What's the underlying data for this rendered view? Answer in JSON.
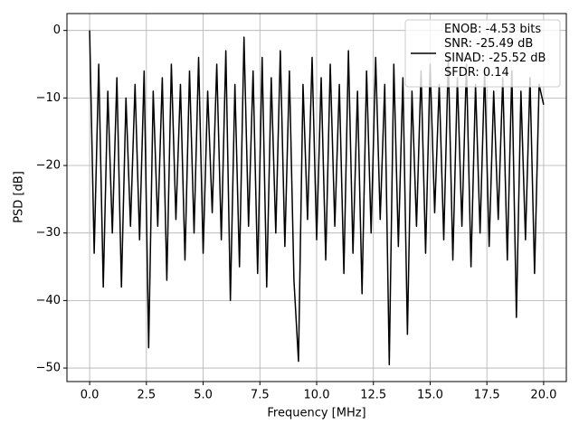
{
  "chart_data": {
    "type": "line",
    "xlabel": "Frequency [MHz]",
    "ylabel": "PSD [dB]",
    "x": [
      0,
      0.2,
      0.4,
      0.6,
      0.8,
      1.0,
      1.2,
      1.4,
      1.6,
      1.8,
      2.0,
      2.2,
      2.4,
      2.6,
      2.8,
      3.0,
      3.2,
      3.4,
      3.6,
      3.8,
      4.0,
      4.2,
      4.4,
      4.6,
      4.8,
      5.0,
      5.2,
      5.4,
      5.6,
      5.8,
      6.0,
      6.2,
      6.4,
      6.6,
      6.8,
      7.0,
      7.2,
      7.4,
      7.6,
      7.8,
      8.0,
      8.2,
      8.4,
      8.6,
      8.8,
      9.0,
      9.2,
      9.4,
      9.6,
      9.8,
      10.0,
      10.2,
      10.4,
      10.6,
      10.8,
      11.0,
      11.2,
      11.4,
      11.6,
      11.8,
      12.0,
      12.2,
      12.4,
      12.6,
      12.8,
      13.0,
      13.2,
      13.4,
      13.6,
      13.8,
      14.0,
      14.2,
      14.4,
      14.6,
      14.8,
      15.0,
      15.2,
      15.4,
      15.6,
      15.8,
      16.0,
      16.2,
      16.4,
      16.6,
      16.8,
      17.0,
      17.2,
      17.4,
      17.6,
      17.8,
      18.0,
      18.2,
      18.4,
      18.6,
      18.8,
      19.0,
      19.2,
      19.4,
      19.6,
      19.8,
      20.0
    ],
    "series": [
      {
        "name": "ENOB: -4.53 bits\nSNR: -25.49 dB\nSINAD: -25.52 dB\nSFDR: 0.14",
        "color": "#000000",
        "values": [
          0,
          -33,
          -5,
          -38,
          -9,
          -30,
          -7,
          -38,
          -10,
          -29,
          -8,
          -31,
          -6,
          -47,
          -9,
          -29,
          -7,
          -37,
          -5,
          -28,
          -8,
          -34,
          -6,
          -30,
          -4,
          -33,
          -9,
          -27,
          -5,
          -31,
          -3,
          -40,
          -8,
          -35,
          -1,
          -29,
          -6,
          -36,
          -4,
          -38,
          -7,
          -30,
          -3,
          -32,
          -6,
          -37,
          -49,
          -8,
          -28,
          -4,
          -31,
          -7,
          -34,
          -5,
          -29,
          -8,
          -36,
          -3,
          -33,
          -9,
          -39,
          -6,
          -30,
          -4,
          -28,
          -8,
          -49.5,
          -5,
          -32,
          -7,
          -45,
          -9,
          -29,
          -6,
          -33,
          -5,
          -27,
          -8,
          -31,
          -4,
          -34,
          -7,
          -29,
          -5,
          -35,
          -8,
          -30,
          -6,
          -32,
          -9,
          -28,
          -7,
          -34,
          -6,
          -42.5,
          -9,
          -31,
          -7,
          -36,
          -8,
          -11
        ]
      }
    ],
    "xlim": [
      -1,
      21
    ],
    "ylim": [
      -52,
      2.5
    ],
    "xticks": [
      {
        "value": 0,
        "label": "0.0"
      },
      {
        "value": 2.5,
        "label": "2.5"
      },
      {
        "value": 5,
        "label": "5.0"
      },
      {
        "value": 7.5,
        "label": "7.5"
      },
      {
        "value": 10,
        "label": "10.0"
      },
      {
        "value": 12.5,
        "label": "12.5"
      },
      {
        "value": 15,
        "label": "15.0"
      },
      {
        "value": 17.5,
        "label": "17.5"
      },
      {
        "value": 20,
        "label": "20.0"
      }
    ],
    "yticks": [
      {
        "value": -50,
        "label": "−50"
      },
      {
        "value": -40,
        "label": "−40"
      },
      {
        "value": -30,
        "label": "−30"
      },
      {
        "value": -20,
        "label": "−20"
      },
      {
        "value": -10,
        "label": "−10"
      },
      0
    ],
    "grid": true,
    "legend": "upper right"
  }
}
